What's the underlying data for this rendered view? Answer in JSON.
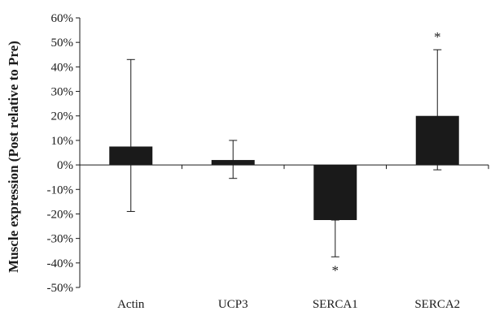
{
  "chart_data": {
    "type": "bar",
    "title": "",
    "xlabel": "",
    "ylabel": "Muscle expression (Post relative to Pre)",
    "categories": [
      "Actin",
      "UCP3",
      "SERCA1",
      "SERCA2"
    ],
    "series": [
      {
        "values": [
          7.5,
          2.0,
          -22.5,
          20.0
        ],
        "error_upper": [
          43,
          10,
          -22.5,
          47
        ],
        "error_lower": [
          -19,
          -5.5,
          -37.5,
          -2
        ]
      }
    ],
    "significance_markers": [
      "",
      "",
      "*",
      "*"
    ],
    "ylim": [
      -50,
      60
    ],
    "yticks": [
      60,
      50,
      40,
      30,
      20,
      10,
      0,
      -10,
      -20,
      -30,
      -40,
      -50
    ],
    "ytick_labels": [
      "60%",
      "50%",
      "40%",
      "30%",
      "20%",
      "10%",
      "0%",
      "-10%",
      "-20%",
      "-30%",
      "-40%",
      "-50%"
    ],
    "grid": false,
    "legend": "none",
    "bar_color": "#1a1a1a"
  }
}
